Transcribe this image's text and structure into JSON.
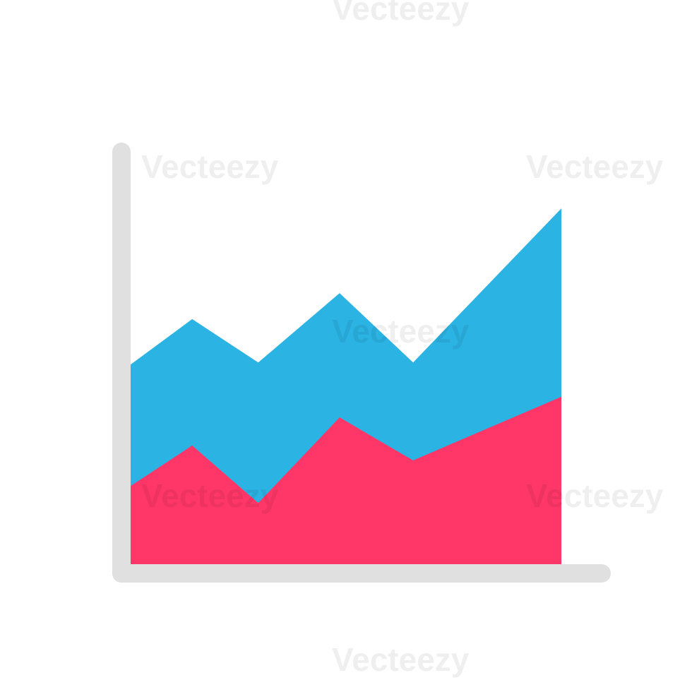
{
  "chart_data": {
    "type": "area",
    "x": [
      0,
      14.9,
      30.9,
      50.6,
      68.4,
      104.3
    ],
    "xlim": [
      0,
      104.3
    ],
    "ylim": [
      0,
      100
    ],
    "series": [
      {
        "color": "#2bb3e3",
        "values": [
          48.5,
          59.5,
          49,
          65.8,
          49,
          86.3
        ]
      },
      {
        "color": "#fe3768",
        "values": [
          19.1,
          28.9,
          15,
          35.7,
          25.3,
          40.7
        ]
      }
    ]
  },
  "watermark": "Vecteezy"
}
